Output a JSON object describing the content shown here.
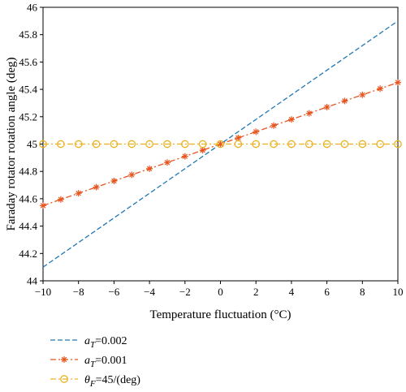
{
  "chart_data": {
    "type": "line",
    "xlabel": "Temperature fluctuation (°C)",
    "ylabel": "Faraday rotator rotation angle (deg)",
    "xlim": [
      -10,
      10
    ],
    "ylim": [
      44,
      46
    ],
    "x_ticks": [
      -10,
      -8,
      -6,
      -4,
      -2,
      0,
      2,
      4,
      6,
      8,
      10
    ],
    "x_tick_labels": [
      "−10",
      "−8",
      "−6",
      "−4",
      "−2",
      "0",
      "2",
      "4",
      "6",
      "8",
      "10"
    ],
    "y_ticks": [
      44,
      44.2,
      44.4,
      44.6,
      44.8,
      45,
      45.2,
      45.4,
      45.6,
      45.8,
      46
    ],
    "y_tick_labels": [
      "44",
      "44.2",
      "44.4",
      "44.6",
      "44.8",
      "45",
      "45.2",
      "45.4",
      "45.6",
      "45.8",
      "46"
    ],
    "legend_position": "below",
    "series": [
      {
        "legend_symbol": "a",
        "legend_sub": "T",
        "legend_value": "=0.002",
        "color": "#1f77b4",
        "line_style": "dashed",
        "marker": "none",
        "x": [
          -10,
          10
        ],
        "y": [
          44.1,
          45.9
        ]
      },
      {
        "legend_symbol": "a",
        "legend_sub": "T",
        "legend_value": "=0.001",
        "color": "#e8541e",
        "line_style": "dashdot",
        "marker": "asterisk",
        "x": [
          -10,
          -9,
          -8,
          -7,
          -6,
          -5,
          -4,
          -3,
          -2,
          -1,
          0,
          1,
          2,
          3,
          4,
          5,
          6,
          7,
          8,
          9,
          10
        ],
        "y": [
          44.55,
          44.595,
          44.64,
          44.685,
          44.73,
          44.775,
          44.82,
          44.865,
          44.91,
          44.955,
          45.0,
          45.045,
          45.09,
          45.135,
          45.18,
          45.225,
          45.27,
          45.315,
          45.36,
          45.405,
          45.45
        ]
      },
      {
        "legend_symbol": "θ",
        "legend_sub": "F",
        "legend_value": "=45/(deg)",
        "color": "#edb120",
        "line_style": "dashdot",
        "marker": "circle",
        "x": [
          -10,
          -9,
          -8,
          -7,
          -6,
          -5,
          -4,
          -3,
          -2,
          -1,
          0,
          1,
          2,
          3,
          4,
          5,
          6,
          7,
          8,
          9,
          10
        ],
        "y": [
          45,
          45,
          45,
          45,
          45,
          45,
          45,
          45,
          45,
          45,
          45,
          45,
          45,
          45,
          45,
          45,
          45,
          45,
          45,
          45,
          45
        ]
      }
    ]
  }
}
